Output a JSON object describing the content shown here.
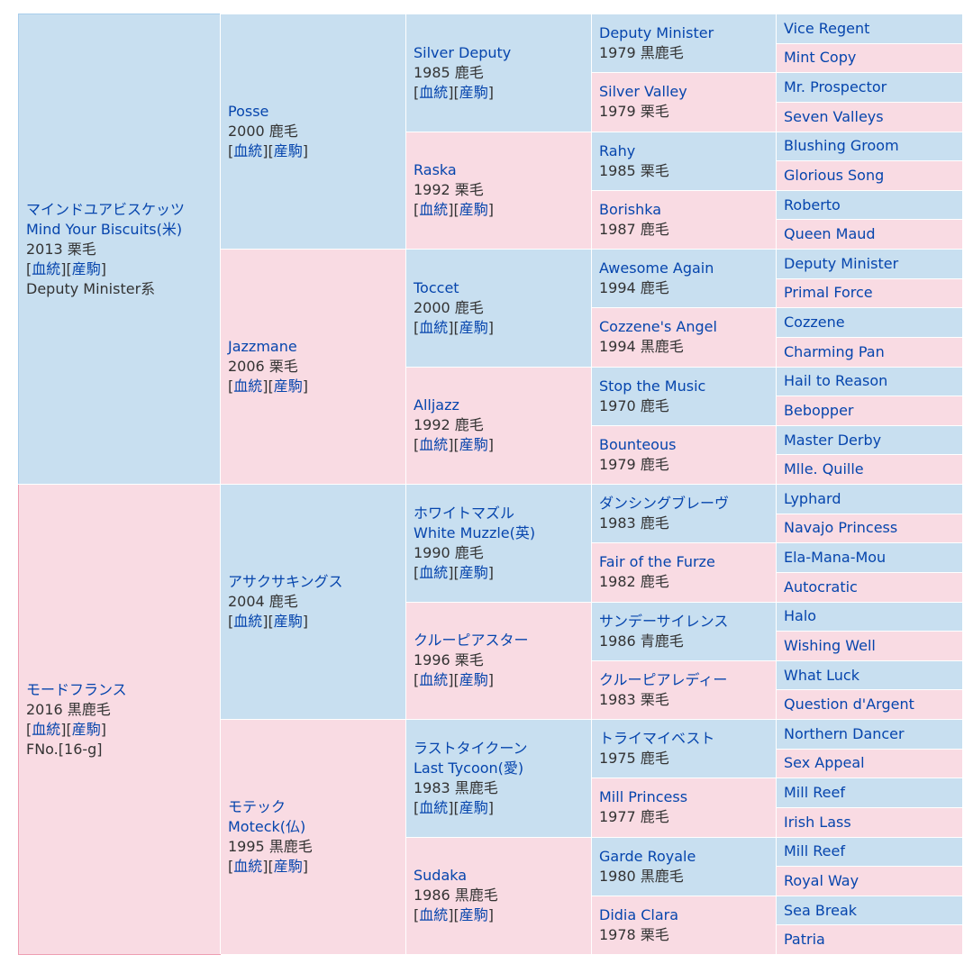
{
  "links": {
    "blood": "血統",
    "progeny": "産駒"
  },
  "subject": {
    "sire": {
      "name_jp": "マインドユアビスケッツ",
      "name_en": "Mind Your Biscuits(米)",
      "info": "2013 栗毛",
      "extra": "Deputy Minister系",
      "sire": {
        "name": "Posse",
        "info": "2000 鹿毛",
        "sire": {
          "name": "Silver Deputy",
          "info": "1985 鹿毛",
          "sire": {
            "name": "Deputy Minister",
            "info": "1979 黒鹿毛",
            "sire": "Vice Regent",
            "dam": "Mint Copy"
          },
          "dam": {
            "name": "Silver Valley",
            "info": "1979 栗毛",
            "sire": "Mr. Prospector",
            "dam": "Seven Valleys"
          }
        },
        "dam": {
          "name": "Raska",
          "info": "1992 栗毛",
          "sire": {
            "name": "Rahy",
            "info": "1985 栗毛",
            "sire": "Blushing Groom",
            "dam": "Glorious Song"
          },
          "dam": {
            "name": "Borishka",
            "info": "1987 鹿毛",
            "sire": "Roberto",
            "dam": "Queen Maud"
          }
        }
      },
      "dam": {
        "name": "Jazzmane",
        "info": "2006 栗毛",
        "sire": {
          "name": "Toccet",
          "info": "2000 鹿毛",
          "sire": {
            "name": "Awesome Again",
            "info": "1994 鹿毛",
            "sire": "Deputy Minister",
            "dam": "Primal Force"
          },
          "dam": {
            "name": "Cozzene's Angel",
            "info": "1994 黒鹿毛",
            "sire": "Cozzene",
            "dam": "Charming Pan"
          }
        },
        "dam": {
          "name": "Alljazz",
          "info": "1992 鹿毛",
          "sire": {
            "name": "Stop the Music",
            "info": "1970 鹿毛",
            "sire": "Hail to Reason",
            "dam": "Bebopper"
          },
          "dam": {
            "name": "Bounteous",
            "info": "1979 鹿毛",
            "sire": "Master Derby",
            "dam": "Mlle. Quille"
          }
        }
      }
    },
    "dam": {
      "name": "モードフランス",
      "info": "2016 黒鹿毛",
      "extra": "FNo.[16-g]",
      "sire": {
        "name": "アサクサキングス",
        "info": "2004 鹿毛",
        "sire": {
          "name_jp": "ホワイトマズル",
          "name_en": "White Muzzle(英)",
          "info": "1990 鹿毛",
          "sire": {
            "name": "ダンシングブレーヴ",
            "info": "1983 鹿毛",
            "sire": "Lyphard",
            "dam": "Navajo Princess"
          },
          "dam": {
            "name": "Fair of the Furze",
            "info": "1982 鹿毛",
            "sire": "Ela-Mana-Mou",
            "dam": "Autocratic"
          }
        },
        "dam": {
          "name": "クルーピアスター",
          "info": "1996 栗毛",
          "sire": {
            "name": "サンデーサイレンス",
            "info": "1986 青鹿毛",
            "sire": "Halo",
            "dam": "Wishing Well"
          },
          "dam": {
            "name": "クルーピアレディー",
            "info": "1983 栗毛",
            "sire": "What Luck",
            "dam": "Question d'Argent"
          }
        }
      },
      "dam": {
        "name_jp": "モテック",
        "name_en": "Moteck(仏)",
        "info": "1995 黒鹿毛",
        "sire": {
          "name_jp": "ラストタイクーン",
          "name_en": "Last Tycoon(愛)",
          "info": "1983 黒鹿毛",
          "sire": {
            "name": "トライマイベスト",
            "info": "1975 鹿毛",
            "sire": "Northern Dancer",
            "dam": "Sex Appeal"
          },
          "dam": {
            "name": "Mill Princess",
            "info": "1977 鹿毛",
            "sire": "Mill Reef",
            "dam": "Irish Lass"
          }
        },
        "dam": {
          "name": "Sudaka",
          "info": "1986 黒鹿毛",
          "sire": {
            "name": "Garde Royale",
            "info": "1980 黒鹿毛",
            "sire": "Mill Reef",
            "dam": "Royal Way"
          },
          "dam": {
            "name": "Didia Clara",
            "info": "1978 栗毛",
            "sire": "Sea Break",
            "dam": "Patria"
          }
        }
      }
    }
  }
}
